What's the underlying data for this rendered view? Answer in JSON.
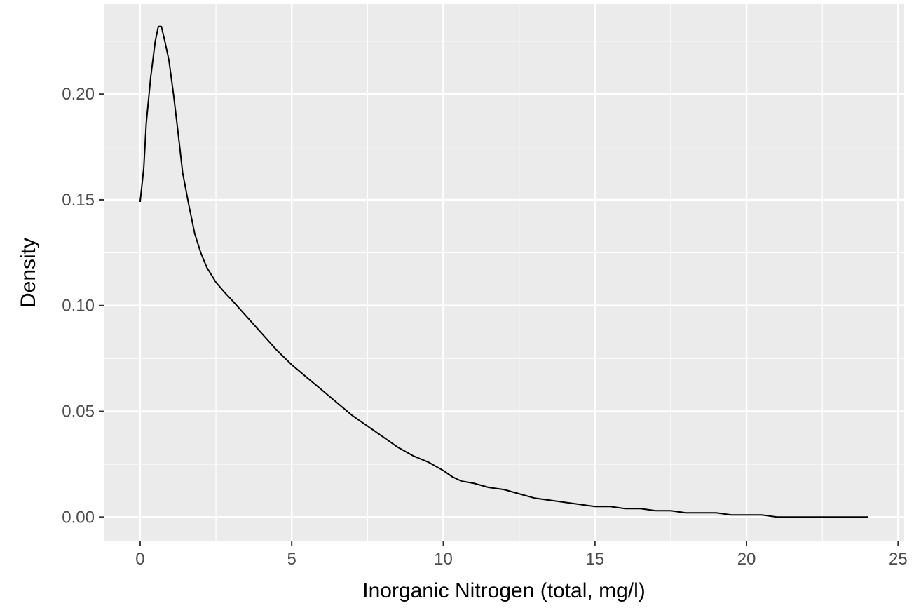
{
  "chart_data": {
    "type": "line",
    "title": "",
    "xlabel": "Inorganic Nitrogen (total, mg/l)",
    "ylabel": "Density",
    "xlim": [
      -1.2,
      25.2
    ],
    "ylim": [
      -0.0115,
      0.2425
    ],
    "x_ticks": [
      0,
      5,
      10,
      15,
      20,
      25
    ],
    "x_tick_labels": [
      "0",
      "5",
      "10",
      "15",
      "20",
      "25"
    ],
    "y_ticks": [
      0.0,
      0.05,
      0.1,
      0.15,
      0.2
    ],
    "y_tick_labels": [
      "0.00",
      "0.05",
      "0.10",
      "0.15",
      "0.20"
    ],
    "grid": true,
    "colors": {
      "panel": "#ebebeb",
      "grid": "#ffffff",
      "line": "#000000"
    },
    "series": [
      {
        "x": [
          0.0,
          0.12,
          0.2,
          0.35,
          0.5,
          0.6,
          0.7,
          0.8,
          0.95,
          1.1,
          1.25,
          1.4,
          1.6,
          1.8,
          2.0,
          2.2,
          2.5,
          2.8,
          3.0,
          3.5,
          4.0,
          4.5,
          5.0,
          5.5,
          6.0,
          6.5,
          7.0,
          7.5,
          8.0,
          8.5,
          9.0,
          9.5,
          10.0,
          10.3,
          10.6,
          11.0,
          11.5,
          12.0,
          12.5,
          13.0,
          13.5,
          14.0,
          14.5,
          15.0,
          15.5,
          16.0,
          16.5,
          17.0,
          17.5,
          18.0,
          18.5,
          19.0,
          19.5,
          20.0,
          20.5,
          21.0,
          21.5,
          22.0,
          22.5,
          23.0,
          23.5,
          24.0
        ],
        "y": [
          0.149,
          0.165,
          0.186,
          0.208,
          0.225,
          0.232,
          0.232,
          0.226,
          0.216,
          0.2,
          0.182,
          0.163,
          0.148,
          0.134,
          0.125,
          0.118,
          0.111,
          0.106,
          0.103,
          0.095,
          0.087,
          0.079,
          0.072,
          0.066,
          0.06,
          0.054,
          0.048,
          0.043,
          0.038,
          0.033,
          0.029,
          0.026,
          0.022,
          0.019,
          0.017,
          0.016,
          0.014,
          0.013,
          0.011,
          0.009,
          0.008,
          0.007,
          0.006,
          0.005,
          0.005,
          0.004,
          0.004,
          0.003,
          0.003,
          0.002,
          0.002,
          0.002,
          0.001,
          0.001,
          0.001,
          0.0,
          0.0,
          0.0,
          0.0,
          0.0,
          0.0,
          0.0
        ]
      }
    ]
  }
}
